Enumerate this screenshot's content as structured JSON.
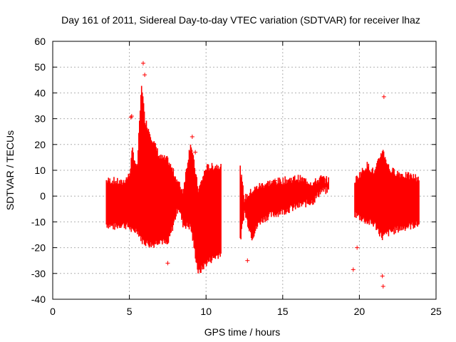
{
  "chart_data": {
    "type": "scatter",
    "title": "Day 161 of 2011, Sidereal Day-to-day VTEC variation (SDTVAR) for receiver lhaz",
    "xlabel": "GPS time / hours",
    "ylabel": "SDTVAR / TECUs",
    "xlim": [
      0,
      25
    ],
    "ylim": [
      -40,
      60
    ],
    "xticks": [
      0,
      5,
      10,
      15,
      20,
      25
    ],
    "yticks": [
      -40,
      -30,
      -20,
      -10,
      0,
      10,
      20,
      30,
      40,
      50,
      60
    ],
    "grid": true,
    "marker": "+",
    "series_color": "#ff0000",
    "series": [
      {
        "name": "SDTVAR",
        "envelope": [
          {
            "x": 3.5,
            "low": -11,
            "high": 6
          },
          {
            "x": 4.0,
            "low": -12,
            "high": 6
          },
          {
            "x": 4.5,
            "low": -11,
            "high": 5
          },
          {
            "x": 5.0,
            "low": -12,
            "high": 8
          },
          {
            "x": 5.2,
            "low": -14,
            "high": 18
          },
          {
            "x": 5.5,
            "low": -13,
            "high": 10
          },
          {
            "x": 5.8,
            "low": -17,
            "high": 44
          },
          {
            "x": 6.0,
            "low": -18,
            "high": 30
          },
          {
            "x": 6.5,
            "low": -19,
            "high": 22
          },
          {
            "x": 7.0,
            "low": -17,
            "high": 15
          },
          {
            "x": 7.5,
            "low": -19,
            "high": 14
          },
          {
            "x": 8.2,
            "low": -4,
            "high": 5
          },
          {
            "x": 8.5,
            "low": -11,
            "high": 2
          },
          {
            "x": 9.0,
            "low": -12,
            "high": 21
          },
          {
            "x": 9.5,
            "low": -30,
            "high": 2
          },
          {
            "x": 10.0,
            "low": -26,
            "high": 11
          },
          {
            "x": 11.0,
            "low": -22,
            "high": 12
          },
          {
            "x": 12.2,
            "low": -19,
            "high": 12
          },
          {
            "x": 12.5,
            "low": -6,
            "high": -1
          },
          {
            "x": 13.0,
            "low": -16,
            "high": 2
          },
          {
            "x": 13.5,
            "low": -10,
            "high": 4
          },
          {
            "x": 14.0,
            "low": -8,
            "high": 5
          },
          {
            "x": 15.0,
            "low": -6,
            "high": 6
          },
          {
            "x": 16.0,
            "low": -4,
            "high": 7
          },
          {
            "x": 17.0,
            "low": -2,
            "high": 5
          },
          {
            "x": 17.5,
            "low": 2,
            "high": 7
          },
          {
            "x": 18.0,
            "low": 2,
            "high": 6
          },
          {
            "x": 19.7,
            "low": -7,
            "high": 6
          },
          {
            "x": 20.5,
            "low": -10,
            "high": 12
          },
          {
            "x": 21.0,
            "low": -11,
            "high": 9
          },
          {
            "x": 21.5,
            "low": -16,
            "high": 18
          },
          {
            "x": 22.0,
            "low": -14,
            "high": 10
          },
          {
            "x": 23.0,
            "low": -12,
            "high": 8
          },
          {
            "x": 23.9,
            "low": -11,
            "high": 7
          }
        ],
        "outliers": [
          {
            "x": 5.1,
            "y": 30.5
          },
          {
            "x": 5.15,
            "y": 31
          },
          {
            "x": 5.9,
            "y": 51.5
          },
          {
            "x": 6.0,
            "y": 47
          },
          {
            "x": 7.5,
            "y": -26
          },
          {
            "x": 9.1,
            "y": 23
          },
          {
            "x": 9.3,
            "y": 17
          },
          {
            "x": 12.7,
            "y": -25
          },
          {
            "x": 14.5,
            "y": 6
          },
          {
            "x": 19.6,
            "y": -28.5
          },
          {
            "x": 19.85,
            "y": -20
          },
          {
            "x": 21.6,
            "y": 38.5
          },
          {
            "x": 21.55,
            "y": -35
          },
          {
            "x": 21.5,
            "y": -31
          }
        ]
      }
    ]
  }
}
